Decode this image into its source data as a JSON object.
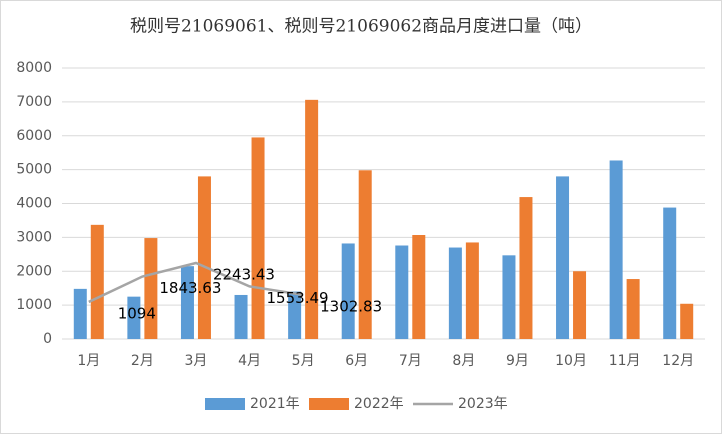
{
  "chart_data": {
    "type": "bar",
    "title": "税则号21069061、税则号21069062商品月度进口量（吨）",
    "categories": [
      "1月",
      "2月",
      "3月",
      "4月",
      "5月",
      "6月",
      "7月",
      "8月",
      "9月",
      "10月",
      "11月",
      "12月"
    ],
    "series": [
      {
        "name": "2021年",
        "color": "#5b9bd5",
        "values": [
          1480,
          1250,
          2150,
          1300,
          1400,
          2820,
          2760,
          2700,
          2470,
          4800,
          5270,
          3880
        ]
      },
      {
        "name": "2022年",
        "color": "#ed7d31",
        "values": [
          3370,
          2980,
          4800,
          5950,
          7060,
          4980,
          3070,
          2850,
          4190,
          2000,
          1770,
          1040
        ]
      },
      {
        "name": "2023年",
        "color": "#a5a5a5",
        "type": "line",
        "values": [
          1094,
          1843.63,
          2243.43,
          1553.49,
          1302.83,
          null,
          null,
          null,
          null,
          null,
          null,
          null
        ]
      }
    ],
    "ylim": [
      0,
      8000
    ],
    "yticks": [
      0,
      1000,
      2000,
      3000,
      4000,
      5000,
      6000,
      7000,
      8000
    ],
    "grid": true,
    "legend": "bottom"
  }
}
